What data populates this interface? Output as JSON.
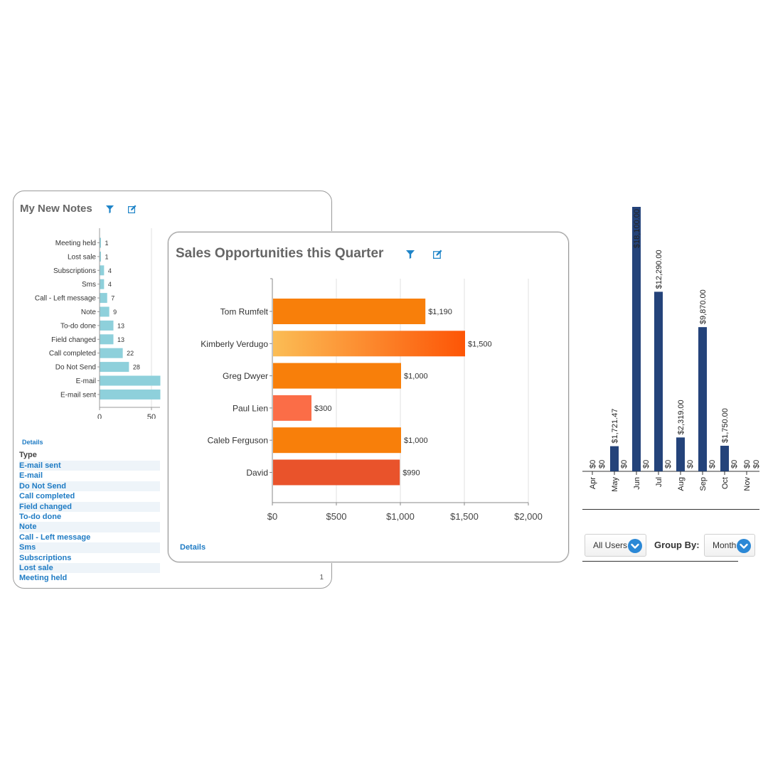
{
  "notes_panel": {
    "title": "My New Notes",
    "details_label": "Details",
    "table_header": "Type",
    "types": [
      "E-mail sent",
      "E-mail",
      "Do Not Send",
      "Call completed",
      "Field changed",
      "To-do done",
      "Note",
      "Call - Left message",
      "Sms",
      "Subscriptions",
      "Lost sale",
      "Meeting held"
    ],
    "last_row_count": "1"
  },
  "sales_panel": {
    "title": "Sales Opportunities this Quarter",
    "details_label": "Details"
  },
  "filters": {
    "users_value": "All Users",
    "group_by_label": "Group By:",
    "group_by_value": "Month"
  },
  "colors": {
    "notes_bar": "#8ed0db",
    "sales_bar": "#f87f0a",
    "monthly_bar": "#24437a",
    "link": "#1e7bc4"
  },
  "chart_data": [
    {
      "type": "bar",
      "orientation": "horizontal",
      "title": "My New Notes",
      "categories": [
        "Meeting held",
        "Lost sale",
        "Subscriptions",
        "Sms",
        "Call - Left message",
        "Note",
        "To-do done",
        "Field changed",
        "Call completed",
        "Do Not Send",
        "E-mail",
        "E-mail sent"
      ],
      "values": [
        1,
        1,
        4,
        4,
        7,
        9,
        13,
        13,
        22,
        28,
        null,
        null
      ],
      "value_labels": [
        "1",
        "1",
        "4",
        "4",
        "7",
        "9",
        "13",
        "13",
        "22",
        "28",
        "",
        ""
      ],
      "clipped_values": [
        62,
        62
      ],
      "xlim": [
        0,
        60
      ],
      "ticks": [
        "0",
        "50"
      ]
    },
    {
      "type": "bar",
      "orientation": "horizontal",
      "title": "Sales Opportunities this Quarter",
      "categories": [
        "Tom Rumfelt",
        "Kimberly Verdugo",
        "Greg Dwyer",
        "Paul Lien",
        "Caleb Ferguson",
        "David"
      ],
      "values": [
        1190,
        1500,
        1000,
        300,
        1000,
        990
      ],
      "value_labels": [
        "$1,190",
        "$1,500",
        "$1,000",
        "$300",
        "$1,000",
        "$990"
      ],
      "xlim": [
        0,
        2000
      ],
      "ticks": [
        "$0",
        "$500",
        "$1,000",
        "$1,500",
        "$2,000"
      ],
      "grid": true
    },
    {
      "type": "bar",
      "orientation": "vertical",
      "categories": [
        "Apr",
        "May",
        "Jun",
        "Jul",
        "Aug",
        "Sep",
        "Oct",
        "Nov"
      ],
      "series": [
        {
          "values": [
            0,
            1721.47,
            18100,
            12290,
            2319,
            9870,
            1750,
            0
          ],
          "labels": [
            "$0",
            "$1,721.47",
            "$18,100.00",
            "$12,290.00",
            "$2,319.00",
            "$9,870.00",
            "$1,750.00",
            "$0"
          ]
        },
        {
          "values": [
            0,
            0,
            0,
            0,
            0,
            0,
            0,
            0
          ],
          "labels": [
            "$0",
            "$0",
            "$0",
            "$0",
            "$0",
            "$0",
            "$0",
            "$0"
          ]
        }
      ],
      "ylim": [
        0,
        18100
      ]
    }
  ]
}
